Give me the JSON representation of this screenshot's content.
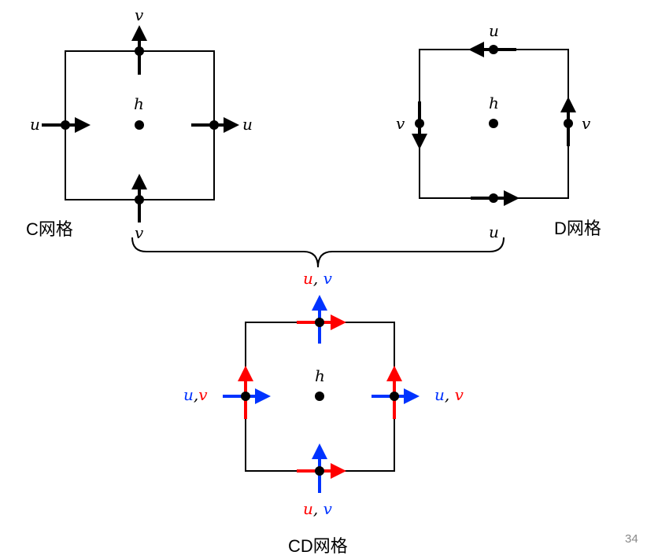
{
  "colors": {
    "black": "#000000",
    "red": "#ff0000",
    "blue": "#0033ff",
    "page_number": "#888888"
  },
  "c_grid": {
    "caption": "C网格",
    "center_label": "h",
    "left_label": "u",
    "right_label": "u",
    "top_label": "v",
    "bottom_label": "v"
  },
  "d_grid": {
    "caption": "D网格",
    "center_label": "h",
    "top_label": "u",
    "bottom_label": "u",
    "left_label": "v",
    "right_label": "v"
  },
  "cd_grid": {
    "caption": "CD网格",
    "center_label": "h",
    "top_label": {
      "first": "u",
      "sep": ", ",
      "second": "v"
    },
    "bottom_label": {
      "first": "u",
      "sep": ", ",
      "second": "v"
    },
    "left_label": {
      "first": "u",
      "sep": ",",
      "second": "v"
    },
    "right_label": {
      "first": "u",
      "sep": ", ",
      "second": "v"
    }
  },
  "page_number": "34"
}
